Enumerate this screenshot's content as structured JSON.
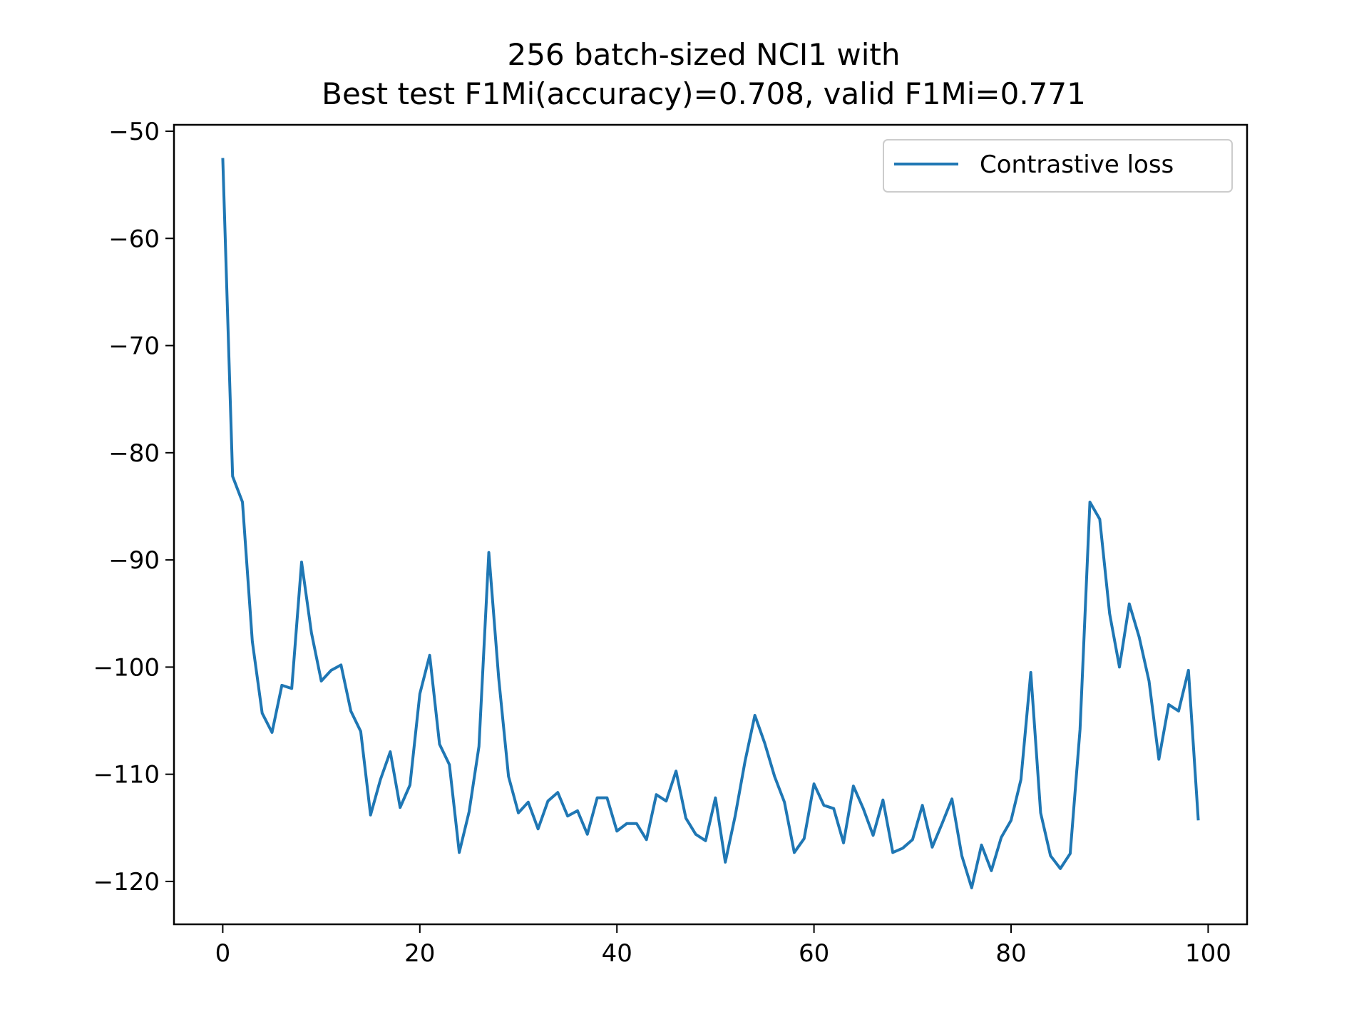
{
  "chart_data": {
    "type": "line",
    "title_line1": "256 batch-sized NCI1 with",
    "title_line2": "Best test F1Mi(accuracy)=0.708, valid F1Mi=0.771",
    "xlabel": "",
    "ylabel": "",
    "xlim": [
      -4.95,
      103.95
    ],
    "ylim": [
      -124.0,
      -49.4
    ],
    "xticks": [
      0,
      20,
      40,
      60,
      80,
      100
    ],
    "yticks": [
      -50,
      -60,
      -70,
      -80,
      -90,
      -100,
      -110,
      -120
    ],
    "xtick_labels": [
      "0",
      "20",
      "40",
      "60",
      "80",
      "100"
    ],
    "ytick_labels": [
      "−50",
      "−60",
      "−70",
      "−80",
      "−90",
      "−100",
      "−110",
      "−120"
    ],
    "grid": false,
    "legend_position": "upper right",
    "series": [
      {
        "name": "Contrastive loss",
        "color": "#1f77b4",
        "x": [
          0,
          1,
          2,
          3,
          4,
          5,
          6,
          7,
          8,
          9,
          10,
          11,
          12,
          13,
          14,
          15,
          16,
          17,
          18,
          19,
          20,
          21,
          22,
          23,
          24,
          25,
          26,
          27,
          28,
          29,
          30,
          31,
          32,
          33,
          34,
          35,
          36,
          37,
          38,
          39,
          40,
          41,
          42,
          43,
          44,
          45,
          46,
          47,
          48,
          49,
          50,
          51,
          52,
          53,
          54,
          55,
          56,
          57,
          58,
          59,
          60,
          61,
          62,
          63,
          64,
          65,
          66,
          67,
          68,
          69,
          70,
          71,
          72,
          73,
          74,
          75,
          76,
          77,
          78,
          79,
          80,
          81,
          82,
          83,
          84,
          85,
          86,
          87,
          88,
          89,
          90,
          91,
          92,
          93,
          94,
          95,
          96,
          97,
          98,
          99
        ],
        "y": [
          -52.5,
          -82.2,
          -84.6,
          -97.6,
          -104.3,
          -106.1,
          -101.7,
          -102.0,
          -90.2,
          -96.8,
          -101.3,
          -100.3,
          -99.8,
          -104.1,
          -106.0,
          -113.8,
          -110.5,
          -107.9,
          -113.1,
          -111.0,
          -102.5,
          -98.9,
          -107.2,
          -109.1,
          -117.3,
          -113.5,
          -107.4,
          -89.3,
          -101.0,
          -110.2,
          -113.6,
          -112.6,
          -115.1,
          -112.5,
          -111.7,
          -113.9,
          -113.4,
          -115.6,
          -112.2,
          -112.2,
          -115.3,
          -114.6,
          -114.6,
          -116.1,
          -111.9,
          -112.5,
          -109.7,
          -114.1,
          -115.6,
          -116.2,
          -112.2,
          -118.2,
          -113.9,
          -108.8,
          -104.5,
          -107.1,
          -110.2,
          -112.6,
          -117.3,
          -116.0,
          -110.9,
          -112.9,
          -113.2,
          -116.4,
          -111.1,
          -113.2,
          -115.7,
          -112.4,
          -117.3,
          -116.9,
          -116.1,
          -112.9,
          -116.8,
          -114.6,
          -112.3,
          -117.6,
          -120.6,
          -116.6,
          -119.0,
          -115.9,
          -114.3,
          -110.5,
          -100.5,
          -113.6,
          -117.6,
          -118.8,
          -117.4,
          -105.8,
          -84.6,
          -86.2,
          -95.0,
          -100.0,
          -94.1,
          -97.2,
          -101.3,
          -108.6,
          -103.5,
          -104.1,
          -100.3,
          -114.3
        ]
      }
    ]
  }
}
